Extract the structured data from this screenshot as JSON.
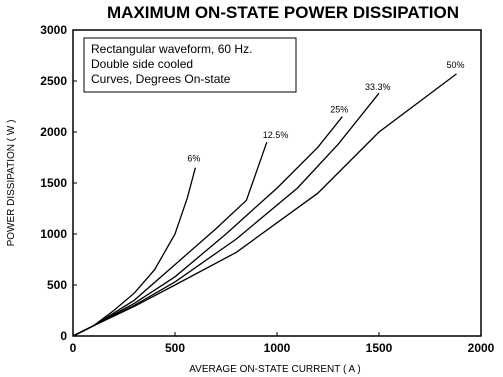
{
  "chart_data": {
    "type": "line",
    "title": "MAXIMUM ON-STATE POWER DISSIPATION",
    "xlabel": "AVERAGE ON-STATE CURRENT ( A )",
    "ylabel": "POWER DISSIPATION ( W )",
    "xlim": [
      0,
      2000
    ],
    "ylim": [
      0,
      3000
    ],
    "x_ticks": [
      "0",
      "500",
      "1000",
      "1500",
      "2000"
    ],
    "y_ticks": [
      "0",
      "500",
      "1000",
      "1500",
      "2000",
      "2500",
      "3000"
    ],
    "grid": false,
    "legend_box": {
      "position": "top-left",
      "lines": [
        "Rectangular waveform, 60 Hz.",
        "Double side cooled",
        "Curves, Degrees On-state"
      ]
    },
    "series": [
      {
        "name": "6%",
        "points": [
          [
            0,
            0
          ],
          [
            100,
            100
          ],
          [
            200,
            250
          ],
          [
            300,
            420
          ],
          [
            400,
            650
          ],
          [
            500,
            1000
          ],
          [
            560,
            1350
          ],
          [
            600,
            1650
          ]
        ]
      },
      {
        "name": "12.5%",
        "points": [
          [
            0,
            0
          ],
          [
            100,
            100
          ],
          [
            300,
            350
          ],
          [
            500,
            700
          ],
          [
            700,
            1050
          ],
          [
            850,
            1330
          ],
          [
            880,
            1500
          ],
          [
            950,
            1900
          ]
        ]
      },
      {
        "name": "25%",
        "points": [
          [
            0,
            0
          ],
          [
            100,
            100
          ],
          [
            300,
            320
          ],
          [
            500,
            580
          ],
          [
            750,
            1000
          ],
          [
            1000,
            1450
          ],
          [
            1200,
            1850
          ],
          [
            1320,
            2150
          ]
        ]
      },
      {
        "name": "33.3%",
        "points": [
          [
            0,
            0
          ],
          [
            100,
            100
          ],
          [
            300,
            300
          ],
          [
            500,
            530
          ],
          [
            800,
            950
          ],
          [
            1100,
            1450
          ],
          [
            1300,
            1880
          ],
          [
            1500,
            2380
          ]
        ]
      },
      {
        "name": "50%",
        "points": [
          [
            0,
            0
          ],
          [
            100,
            100
          ],
          [
            300,
            290
          ],
          [
            500,
            500
          ],
          [
            800,
            820
          ],
          [
            1200,
            1400
          ],
          [
            1500,
            2000
          ],
          [
            1800,
            2450
          ],
          [
            1880,
            2570
          ]
        ]
      }
    ]
  }
}
